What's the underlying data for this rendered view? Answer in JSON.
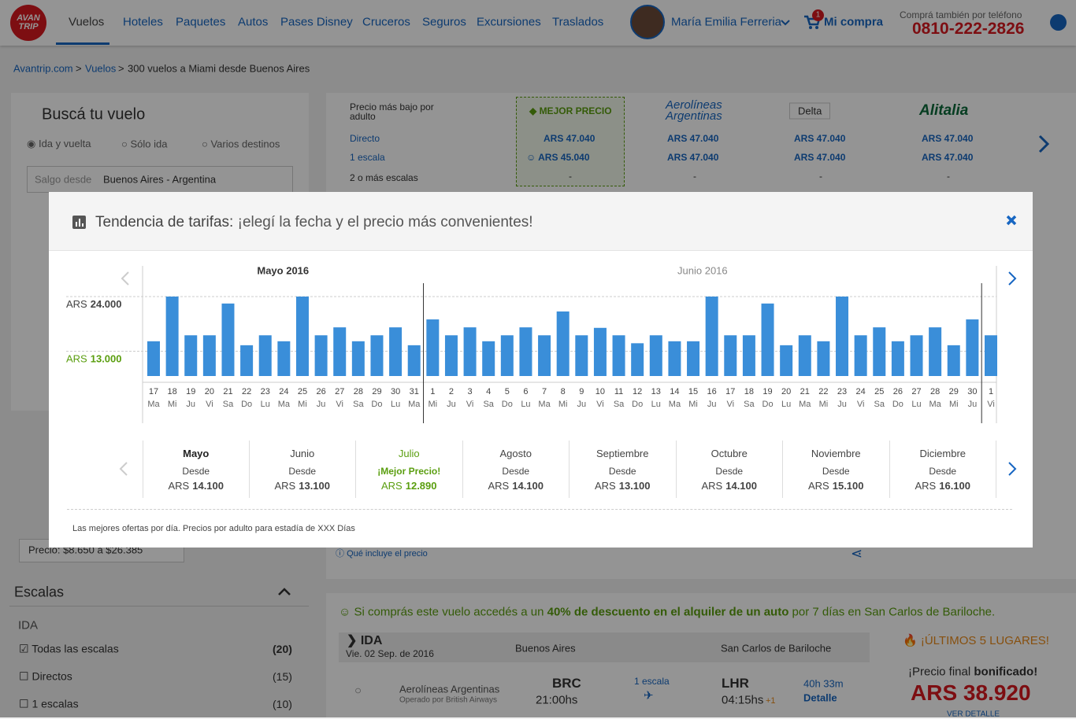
{
  "header": {
    "logo": "AVAN TRIP",
    "nav": [
      "Vuelos",
      "Hoteles",
      "Paquetes",
      "Autos",
      "Pases Disney",
      "Cruceros",
      "Seguros",
      "Excursiones",
      "Traslados"
    ],
    "user": "María Emilia Ferreria",
    "cart_count": "1",
    "cart": "Mi compra",
    "phone_label": "Comprá también por teléfono",
    "phone": "0810-222-2826"
  },
  "breadcrumb": {
    "items": [
      "Avantrip.com",
      "Vuelos",
      "300 vuelos a Miami desde Buenos Aires"
    ],
    "separator": ">"
  },
  "search": {
    "title": "Buscá tu vuelo",
    "trip_types": [
      "Ida y vuelta",
      "Sólo ida",
      "Varios destinos"
    ],
    "origin_label": "Salgo desde",
    "origin": "Buenos Aires - Argentina"
  },
  "filters": {
    "price": "Precio: $8.650 a $26.385",
    "stops_title": "Escalas",
    "leg": "IDA",
    "stops": [
      {
        "label": "Todas las escalas",
        "count": "(20)"
      },
      {
        "label": "Directos",
        "count": "(15)"
      },
      {
        "label": "1 escalas",
        "count": "(10)"
      }
    ]
  },
  "matrix": {
    "header": "Precio más bajo por adulto",
    "rows": [
      "Directo",
      "1 escala",
      "2 o más escalas"
    ],
    "best": "MEJOR PRECIO",
    "best_prices": [
      "ARS 47.040",
      "ARS 45.040",
      "-"
    ],
    "columns": [
      {
        "name": "Aerolíneas Argentinas",
        "prices": [
          "ARS 47.040",
          "ARS 47.040",
          "-"
        ]
      },
      {
        "name": "Delta",
        "prices": [
          "ARS 47.040",
          "ARS 47.040",
          "-"
        ]
      },
      {
        "name": "Alitalia",
        "prices": [
          "ARS 47.040",
          "ARS 47.040",
          "-"
        ]
      }
    ]
  },
  "results": {
    "includes": "Qué incluye el precio",
    "promo": [
      "Si comprás este vuelo accedés a un ",
      "40% de descuento en el alquiler de un auto",
      " por 7 días en San Carlos de Bariloche."
    ],
    "leg": "IDA",
    "date": "Vie. 02 Sep. de 2016",
    "from_city": "Buenos Aires",
    "to_city": "San Carlos de Bariloche",
    "airline": "Aerolíneas Argentinas",
    "operated": "Operado por British Airways",
    "from_code": "BRC",
    "dep_time": "21:00hs",
    "stops": "1 escala",
    "to_code": "LHR",
    "arr_time": "04:15hs",
    "day_offset": "+1",
    "duration": "40h 33m",
    "detail": "Detalle",
    "seats": "¡ÚLTIMOS 5 LUGARES!",
    "final_label": "¡Precio final ",
    "final_bold": "bonificado!",
    "final_price": "ARS 38.920",
    "see_detail": "VER DETALLE"
  },
  "modal": {
    "title": "Tendencia de tarifas:",
    "subtitle": " ¡elegí la fecha y el precio más convenientes!",
    "currency": "ARS",
    "months": [
      {
        "name": "Mayo",
        "note": "Desde",
        "price": "14.100"
      },
      {
        "name": "Junio",
        "note": "Desde",
        "price": "13.100"
      },
      {
        "name": "Julio",
        "note": "¡Mejor Precio!",
        "price": "12.890",
        "color": "#5a9e0f"
      },
      {
        "name": "Agosto",
        "note": "Desde",
        "price": "14.100"
      },
      {
        "name": "Septiembre",
        "note": "Desde",
        "price": "13.100"
      },
      {
        "name": "Octubre",
        "note": "Desde",
        "price": "14.100"
      },
      {
        "name": "Noviembre",
        "note": "Desde",
        "price": "15.100"
      },
      {
        "name": "Diciembre",
        "note": "Desde",
        "price": "16.100"
      }
    ],
    "footnote": "Las mejores ofertas por día. Precios por adulto para estadía de XXX Días"
  },
  "chart_data": {
    "type": "bar",
    "currency": "ARS",
    "months": [
      "Mayo 2016",
      "Junio 2016"
    ],
    "categories": [
      "17",
      "18",
      "19",
      "20",
      "21",
      "22",
      "23",
      "24",
      "25",
      "26",
      "27",
      "28",
      "29",
      "30",
      "31",
      "1",
      "2",
      "3",
      "4",
      "5",
      "6",
      "7",
      "8",
      "9",
      "10",
      "11",
      "12",
      "13",
      "14",
      "15",
      "16",
      "17",
      "18",
      "19",
      "20",
      "21",
      "22",
      "23",
      "24",
      "25",
      "26",
      "27",
      "28",
      "29",
      "30",
      "1"
    ],
    "weekdays": [
      "Ma",
      "Mi",
      "Ju",
      "Vi",
      "Sa",
      "Do",
      "Lu",
      "Ma",
      "Mi",
      "Ju",
      "Vi",
      "Sa",
      "Do",
      "Lu",
      "Ma",
      "Mi",
      "Ju",
      "Vi",
      "Sa",
      "Do",
      "Lu",
      "Ma",
      "Mi",
      "Ju",
      "Vi",
      "Sa",
      "Do",
      "Lu",
      "Ma",
      "Mi",
      "Ju",
      "Vi",
      "Sa",
      "Do",
      "Lu",
      "Ma",
      "Mi",
      "Ju",
      "Vi",
      "Sa",
      "Do",
      "Lu",
      "Ma",
      "Mi",
      "Ju",
      "Vi"
    ],
    "values": [
      15000,
      24000,
      16200,
      16200,
      22600,
      14200,
      16200,
      15000,
      24000,
      16200,
      17800,
      15000,
      16200,
      17800,
      14200,
      19400,
      16200,
      17800,
      15000,
      16200,
      17800,
      16200,
      21000,
      16200,
      17700,
      16200,
      14600,
      16200,
      15000,
      15000,
      24000,
      16200,
      16200,
      22600,
      14200,
      16200,
      15000,
      24000,
      16200,
      17800,
      15000,
      16200,
      17800,
      14200,
      19400,
      16200
    ],
    "color": "#3a8ed9",
    "ylim": [
      8000,
      24000
    ],
    "yticks": [
      {
        "value": 24000,
        "label": "24.000"
      },
      {
        "value": 13000,
        "label": "13.000",
        "color": "#5a9e0f"
      }
    ],
    "grid": true
  }
}
